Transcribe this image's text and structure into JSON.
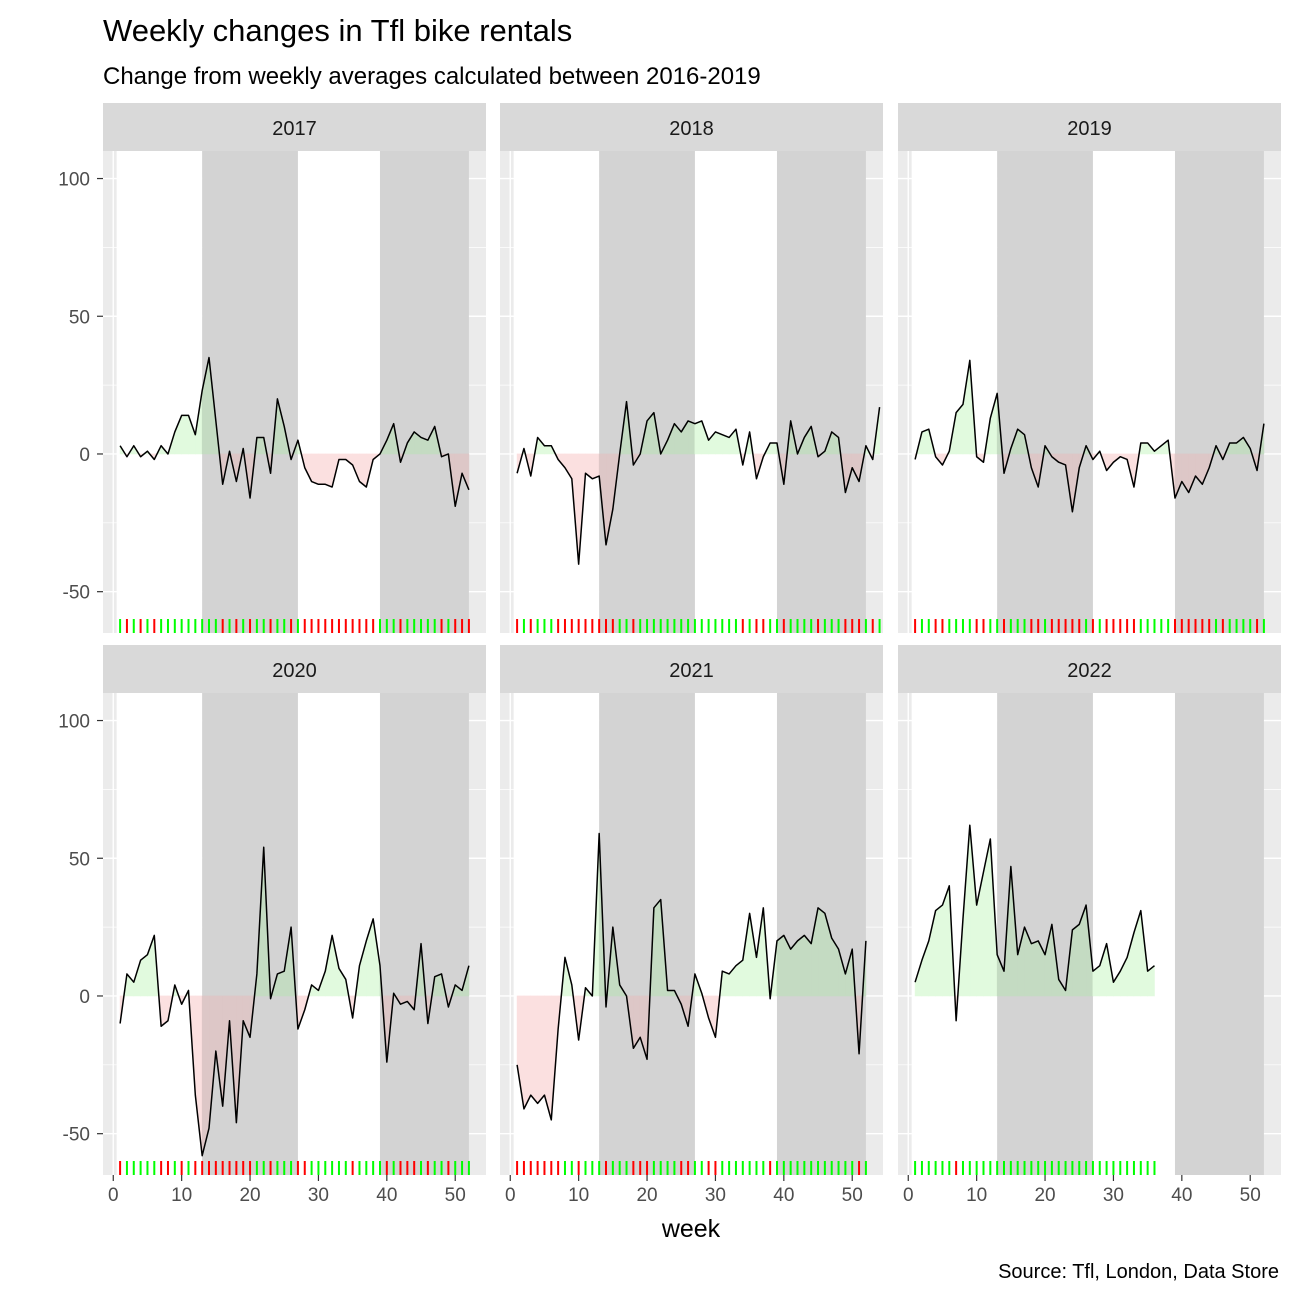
{
  "chart_data": {
    "type": "line",
    "title": "Weekly changes in Tfl bike rentals",
    "subtitle": "Change from weekly averages calculated between 2016-2019",
    "xlabel": "week",
    "ylabel": "",
    "caption": "Source: Tfl, London, Data Store",
    "xlim": [
      -1.5,
      54.5
    ],
    "ylim": [
      -65,
      110
    ],
    "x_ticks": [
      0,
      10,
      20,
      30,
      40,
      50
    ],
    "y_ticks": [
      -50,
      0,
      50,
      100
    ],
    "quarter_shading": [
      [
        13,
        27
      ],
      [
        39,
        52
      ]
    ],
    "colors": {
      "panel_bg": "#EBEBEB",
      "strip_bg": "#D9D9D9",
      "grid": "#FFFFFF",
      "quarter_band": "#D3D3D3",
      "positive": "#00FF00",
      "negative": "#FF0000",
      "positive_fill": "#E1FADE",
      "negative_fill": "#FBE0E0",
      "positive_fill_shaded": "#C4DBC2",
      "negative_fill_shaded": "#DDC7C7",
      "line": "#000000"
    },
    "facets": [
      {
        "label": "2017",
        "start_week": 1,
        "values": [
          3,
          -1,
          3,
          -1,
          1,
          -2,
          3,
          0,
          8,
          14,
          14,
          7,
          23,
          35,
          12,
          -11,
          1,
          -10,
          2,
          -16,
          6,
          6,
          -7,
          20,
          10,
          -2,
          5,
          -5,
          -10,
          -11,
          -11,
          -12,
          -2,
          -2,
          -4,
          -10,
          -12,
          -2,
          0,
          5,
          11,
          -3,
          4,
          8,
          6,
          5,
          10,
          -1,
          0,
          -19,
          -7,
          -13
        ]
      },
      {
        "label": "2018",
        "start_week": 1,
        "values": [
          -7,
          2,
          -8,
          6,
          3,
          3,
          -2,
          -5,
          -9,
          -40,
          -7,
          -9,
          -8,
          -33,
          -20,
          0,
          19,
          -4,
          0,
          12,
          15,
          0,
          5,
          11,
          8,
          12,
          11,
          12,
          5,
          8,
          7,
          6,
          9,
          -4,
          8,
          -9,
          -1,
          4,
          4,
          -11,
          12,
          0,
          6,
          10,
          -1,
          1,
          8,
          6,
          -14,
          -5,
          -10,
          3,
          -2,
          17
        ]
      },
      {
        "label": "2019",
        "start_week": 1,
        "values": [
          -2,
          8,
          9,
          -1,
          -4,
          1,
          15,
          18,
          34,
          -1,
          -3,
          13,
          22,
          -7,
          2,
          9,
          7,
          -5,
          -12,
          3,
          -1,
          -3,
          -4,
          -21,
          -5,
          3,
          -2,
          1,
          -6,
          -3,
          -1,
          -2,
          -12,
          4,
          4,
          1,
          3,
          5,
          -16,
          -10,
          -14,
          -8,
          -11,
          -5,
          3,
          -2,
          4,
          4,
          6,
          2,
          -6,
          11
        ]
      },
      {
        "label": "2020",
        "start_week": 1,
        "values": [
          -10,
          8,
          5,
          13,
          15,
          22,
          -11,
          -9,
          4,
          -3,
          2,
          -36,
          -58,
          -48,
          -20,
          -40,
          -9,
          -46,
          -9,
          -15,
          8,
          54,
          -1,
          8,
          9,
          25,
          -12,
          -5,
          4,
          2,
          9,
          22,
          10,
          6,
          -8,
          11,
          20,
          28,
          11,
          -24,
          1,
          -3,
          -2,
          -5,
          19,
          -10,
          7,
          8,
          -4,
          4,
          2,
          11
        ]
      },
      {
        "label": "2021",
        "start_week": 1,
        "values": [
          -25,
          -41,
          -36,
          -39,
          -36,
          -45,
          -12,
          14,
          4,
          -16,
          3,
          0,
          59,
          -4,
          25,
          4,
          0,
          -19,
          -15,
          -23,
          32,
          35,
          2,
          2,
          -3,
          -11,
          8,
          1,
          -8,
          -15,
          9,
          8,
          11,
          13,
          30,
          14,
          32,
          -1,
          20,
          22,
          17,
          20,
          22,
          19,
          32,
          30,
          21,
          17,
          8,
          17,
          -21,
          20
        ]
      },
      {
        "label": "2022",
        "start_week": 1,
        "values": [
          5,
          13,
          20,
          31,
          33,
          40,
          -9,
          28,
          62,
          33,
          45,
          57,
          15,
          9,
          47,
          15,
          25,
          19,
          20,
          15,
          26,
          6,
          2,
          24,
          26,
          33,
          9,
          11,
          19,
          5,
          9,
          14,
          23,
          31,
          9,
          11
        ]
      }
    ]
  }
}
